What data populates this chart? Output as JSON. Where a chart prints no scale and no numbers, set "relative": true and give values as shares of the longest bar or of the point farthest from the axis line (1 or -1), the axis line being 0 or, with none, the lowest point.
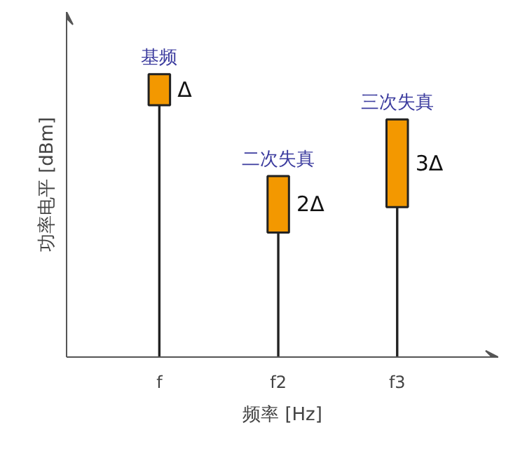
{
  "chart_data": {
    "type": "bar",
    "relative": true,
    "stacked": true,
    "categories": [
      "f",
      "f2",
      "f3"
    ],
    "series": [
      {
        "color": "#222222",
        "values": [
          0.89,
          0.44,
          0.53
        ]
      },
      {
        "color": "#f39800",
        "values": [
          0.11,
          0.2,
          0.31
        ]
      }
    ],
    "xlabel": "频率 [Hz]",
    "ylabel": "功率电平 [dBm]",
    "annotations": [
      "基频",
      "二次失真",
      "三次失真",
      "Δ",
      "2Δ",
      "3Δ"
    ]
  }
}
